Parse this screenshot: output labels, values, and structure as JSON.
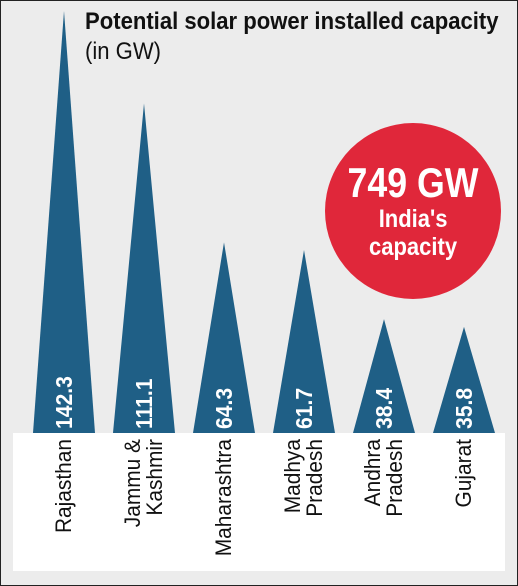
{
  "chart_data": {
    "type": "bar",
    "title": "Potential solar power installed capacity",
    "unit_label": "(in GW)",
    "categories": [
      "Rajasthan",
      "Jammu & Kashmir",
      "Maharashtra",
      "Madhya Pradesh",
      "Andhra Pradesh",
      "Gujarat"
    ],
    "category_lines": [
      [
        "Rajasthan"
      ],
      [
        "Jammu &",
        "Kashmir"
      ],
      [
        "Maharashtra"
      ],
      [
        "Madhya",
        "Pradesh"
      ],
      [
        "Andhra",
        "Pradesh"
      ],
      [
        "Gujarat"
      ]
    ],
    "values": [
      142.3,
      111.1,
      64.3,
      61.7,
      38.4,
      35.8
    ],
    "value_labels": [
      "142.3",
      "111.1",
      "64.3",
      "61.7",
      "38.4",
      "35.8"
    ],
    "colors": {
      "bar": "#1f5f86",
      "background": "#ececec",
      "band": "#ffffff"
    }
  },
  "badge": {
    "value": "749 GW",
    "line1": "India's",
    "line2": "capacity",
    "color": "#e0273a"
  }
}
